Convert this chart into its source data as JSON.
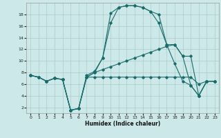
{
  "xlabel": "Humidex (Indice chaleur)",
  "bg_color": "#cce8e8",
  "grid_color": "#aacccc",
  "line_color": "#1a6b6b",
  "xlim": [
    -0.5,
    23.5
  ],
  "ylim": [
    1,
    20
  ],
  "yticks": [
    2,
    4,
    6,
    8,
    10,
    12,
    14,
    16,
    18
  ],
  "xticks": [
    0,
    1,
    2,
    3,
    4,
    5,
    6,
    7,
    8,
    9,
    10,
    11,
    12,
    13,
    14,
    15,
    16,
    17,
    18,
    19,
    20,
    21,
    22,
    23
  ],
  "series": [
    [
      7.5,
      7.2,
      6.5,
      7.0,
      6.8,
      1.5,
      1.8,
      7.2,
      7.2,
      7.2,
      7.2,
      7.2,
      7.2,
      7.2,
      7.2,
      7.2,
      7.2,
      7.2,
      7.2,
      7.2,
      7.2,
      6.0,
      6.5,
      6.5
    ],
    [
      7.5,
      7.2,
      6.5,
      7.0,
      6.8,
      1.5,
      1.8,
      7.2,
      8.0,
      10.5,
      18.2,
      19.2,
      19.5,
      19.5,
      19.2,
      18.5,
      18.0,
      12.8,
      12.8,
      10.8,
      10.8,
      4.0,
      6.5,
      6.5
    ],
    [
      7.5,
      7.2,
      6.5,
      7.0,
      6.8,
      1.5,
      1.8,
      7.5,
      8.2,
      10.5,
      16.5,
      19.2,
      19.5,
      19.5,
      19.2,
      18.5,
      16.5,
      12.8,
      9.5,
      6.5,
      5.8,
      4.0,
      6.5,
      6.5
    ],
    [
      7.5,
      7.2,
      6.5,
      7.0,
      6.8,
      1.5,
      1.8,
      7.2,
      8.0,
      8.5,
      9.0,
      9.5,
      10.0,
      10.5,
      11.0,
      11.5,
      12.0,
      12.5,
      12.8,
      10.8,
      5.8,
      4.0,
      6.5,
      6.5
    ]
  ]
}
